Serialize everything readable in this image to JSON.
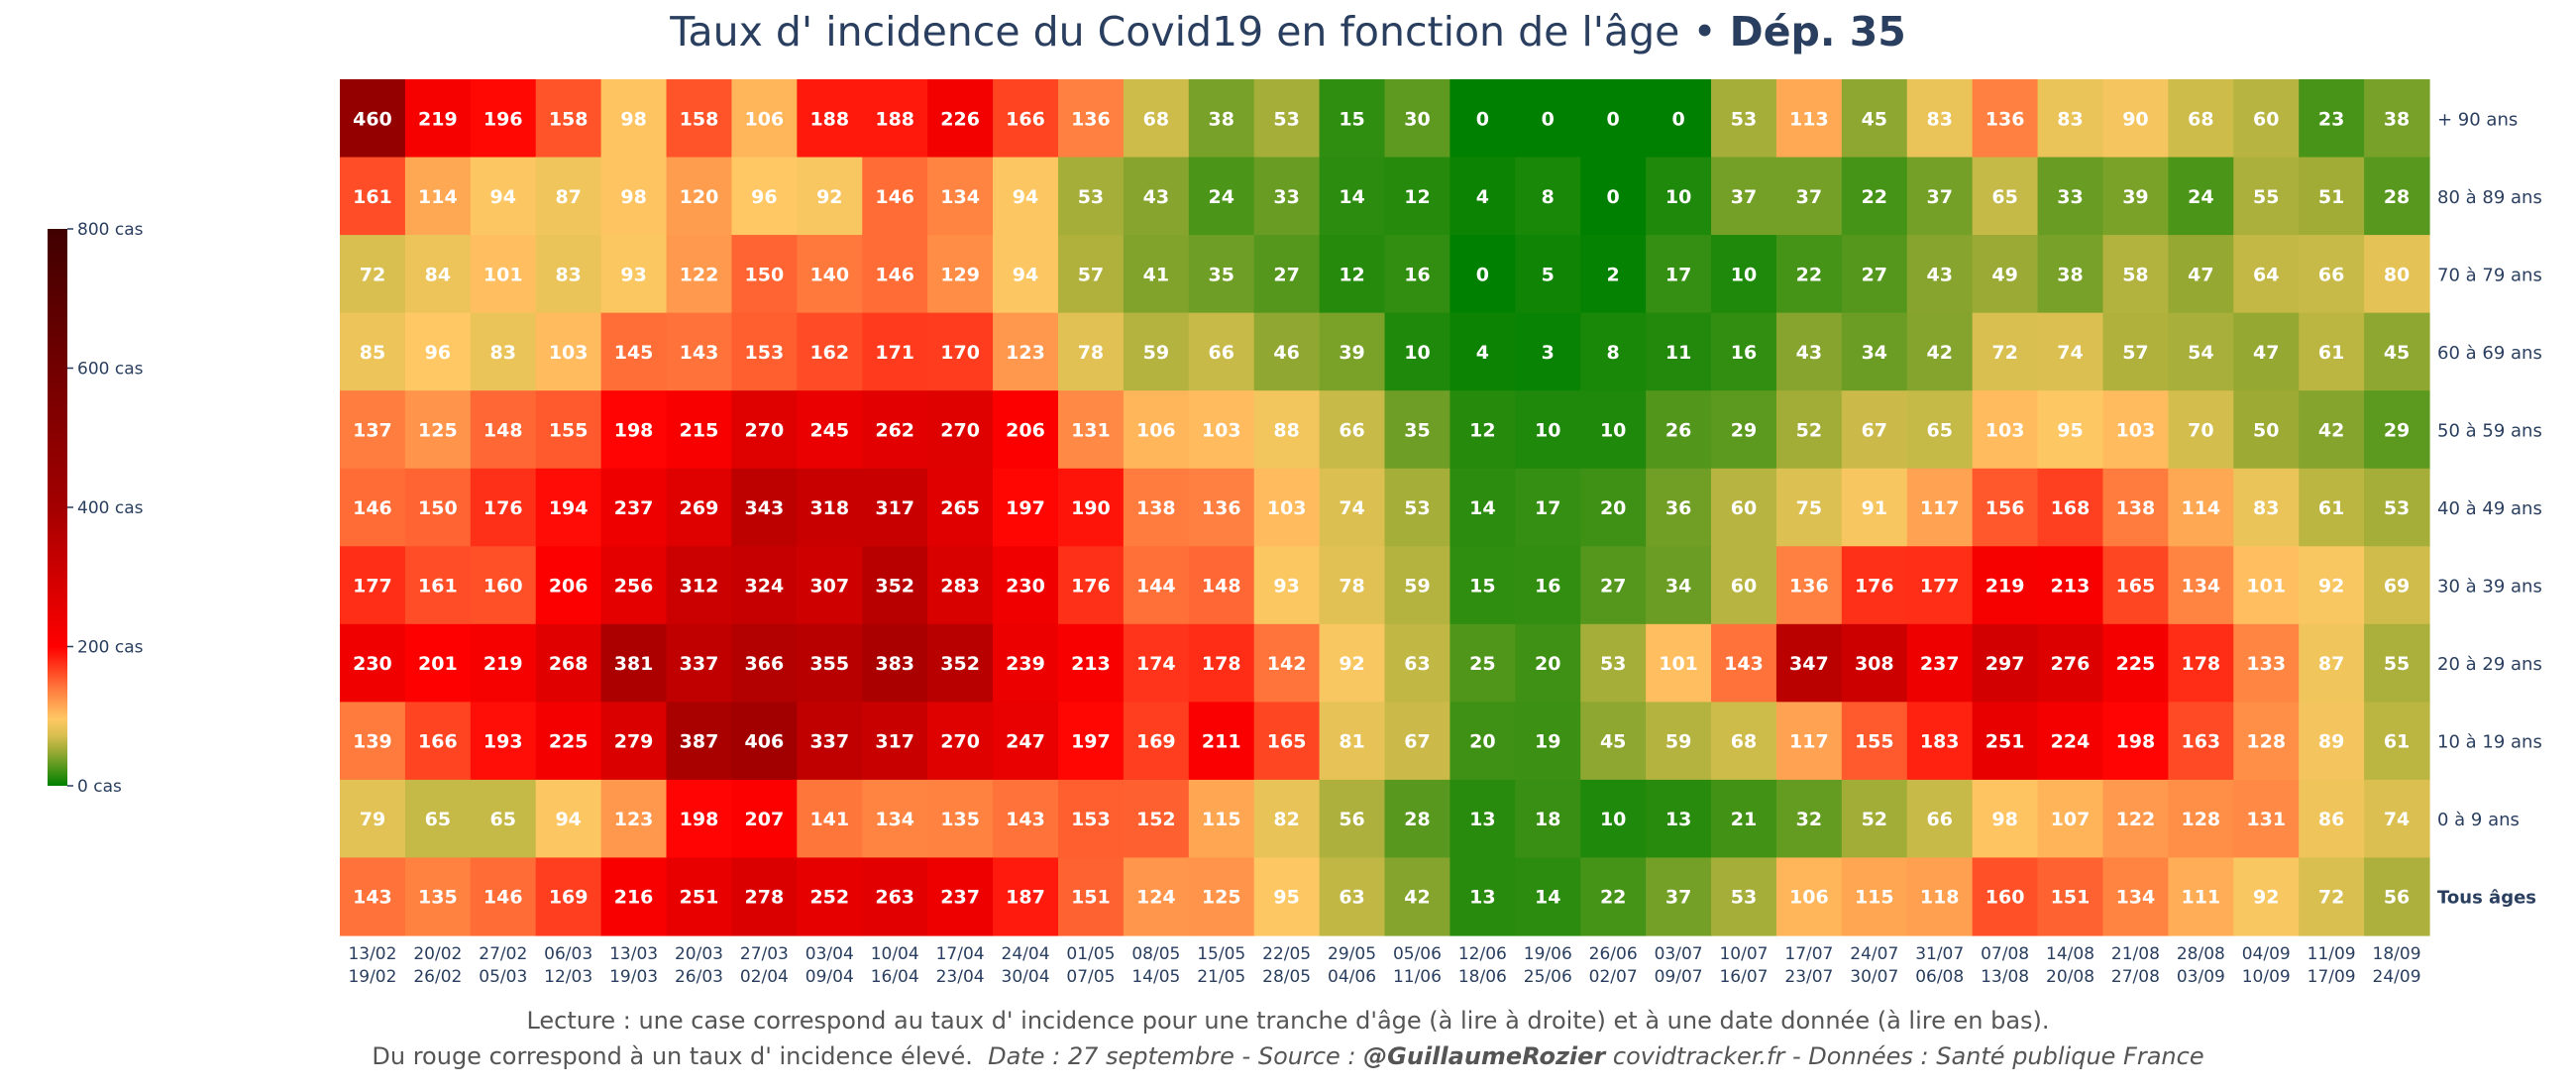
{
  "chart_data": {
    "type": "heatmap",
    "title": "Taux d' incidence du Covid19 en fonction de l'âge",
    "title_separator": "•",
    "title_dep": "Dép. 35",
    "rows": [
      "+ 90 ans",
      "80 à 89 ans",
      "70 à 79 ans",
      "60 à 69 ans",
      "50 à 59 ans",
      "40 à 49 ans",
      "30 à 39 ans",
      "20 à 29 ans",
      "10 à 19 ans",
      "0 à 9 ans",
      "Tous âges"
    ],
    "x_start": [
      "13/02",
      "20/02",
      "27/02",
      "06/03",
      "13/03",
      "20/03",
      "27/03",
      "03/04",
      "10/04",
      "17/04",
      "24/04",
      "01/05",
      "08/05",
      "15/05",
      "22/05",
      "29/05",
      "05/06",
      "12/06",
      "19/06",
      "26/06",
      "03/07",
      "10/07",
      "17/07",
      "24/07",
      "31/07",
      "07/08",
      "14/08",
      "21/08",
      "28/08",
      "04/09",
      "11/09",
      "18/09"
    ],
    "x_end": [
      "19/02",
      "26/02",
      "05/03",
      "12/03",
      "19/03",
      "26/03",
      "02/04",
      "09/04",
      "16/04",
      "23/04",
      "30/04",
      "07/05",
      "14/05",
      "21/05",
      "28/05",
      "04/06",
      "11/06",
      "18/06",
      "25/06",
      "02/07",
      "09/07",
      "16/07",
      "23/07",
      "30/07",
      "06/08",
      "13/08",
      "20/08",
      "27/08",
      "03/09",
      "10/09",
      "17/09",
      "24/09"
    ],
    "values": [
      [
        460,
        219,
        196,
        158,
        98,
        158,
        106,
        188,
        188,
        226,
        166,
        136,
        68,
        38,
        53,
        15,
        30,
        0,
        0,
        0,
        0,
        53,
        113,
        45,
        83,
        136,
        83,
        90,
        68,
        60,
        23,
        38
      ],
      [
        161,
        114,
        94,
        87,
        98,
        120,
        96,
        92,
        146,
        134,
        94,
        53,
        43,
        24,
        33,
        14,
        12,
        4,
        8,
        0,
        10,
        37,
        37,
        22,
        37,
        65,
        33,
        39,
        24,
        55,
        51,
        28
      ],
      [
        72,
        84,
        101,
        83,
        93,
        122,
        150,
        140,
        146,
        129,
        94,
        57,
        41,
        35,
        27,
        12,
        16,
        0,
        5,
        2,
        17,
        10,
        22,
        27,
        43,
        49,
        38,
        58,
        47,
        64,
        66,
        80
      ],
      [
        85,
        96,
        83,
        103,
        145,
        143,
        153,
        162,
        171,
        170,
        123,
        78,
        59,
        66,
        46,
        39,
        10,
        4,
        3,
        8,
        11,
        16,
        43,
        34,
        42,
        72,
        74,
        57,
        54,
        47,
        61,
        45
      ],
      [
        137,
        125,
        148,
        155,
        198,
        215,
        270,
        245,
        262,
        270,
        206,
        131,
        106,
        103,
        88,
        66,
        35,
        12,
        10,
        10,
        26,
        29,
        52,
        67,
        65,
        103,
        95,
        103,
        70,
        50,
        42,
        29
      ],
      [
        146,
        150,
        176,
        194,
        237,
        269,
        343,
        318,
        317,
        265,
        197,
        190,
        138,
        136,
        103,
        74,
        53,
        14,
        17,
        20,
        36,
        60,
        75,
        91,
        117,
        156,
        168,
        138,
        114,
        83,
        61,
        53
      ],
      [
        177,
        161,
        160,
        206,
        256,
        312,
        324,
        307,
        352,
        283,
        230,
        176,
        144,
        148,
        93,
        78,
        59,
        15,
        16,
        27,
        34,
        60,
        136,
        176,
        177,
        219,
        213,
        165,
        134,
        101,
        92,
        69
      ],
      [
        230,
        201,
        219,
        268,
        381,
        337,
        366,
        355,
        383,
        352,
        239,
        213,
        174,
        178,
        142,
        92,
        63,
        25,
        20,
        53,
        101,
        143,
        347,
        308,
        237,
        297,
        276,
        225,
        178,
        133,
        87,
        55
      ],
      [
        139,
        166,
        193,
        225,
        279,
        387,
        406,
        337,
        317,
        270,
        247,
        197,
        169,
        211,
        165,
        81,
        67,
        20,
        19,
        45,
        59,
        68,
        117,
        155,
        183,
        251,
        224,
        198,
        163,
        128,
        89,
        61
      ],
      [
        79,
        65,
        65,
        94,
        123,
        198,
        207,
        141,
        134,
        135,
        143,
        153,
        152,
        115,
        82,
        56,
        28,
        13,
        18,
        10,
        13,
        21,
        32,
        52,
        66,
        98,
        107,
        122,
        128,
        131,
        86,
        74
      ],
      [
        143,
        135,
        146,
        169,
        216,
        251,
        278,
        252,
        263,
        237,
        187,
        151,
        124,
        125,
        95,
        63,
        42,
        13,
        14,
        22,
        37,
        53,
        106,
        115,
        118,
        160,
        151,
        134,
        111,
        92,
        72,
        56
      ]
    ],
    "zmin": 0,
    "zmax": 800,
    "colorbar": {
      "ticks": [
        0,
        200,
        400,
        600,
        800
      ],
      "labels": [
        "0 cas",
        "200 cas",
        "400 cas",
        "600 cas",
        "800 cas"
      ]
    },
    "colorscale": [
      [
        0,
        "#008000"
      ],
      [
        0.0625,
        "#9dab35"
      ],
      [
        0.09,
        "#d8bf4f"
      ],
      [
        0.12,
        "#ffc864"
      ],
      [
        0.17,
        "#ff8040"
      ],
      [
        0.25,
        "#ff0000"
      ],
      [
        0.5,
        "#a30000"
      ],
      [
        1.0,
        "#400000"
      ]
    ]
  },
  "footer": {
    "line1": "Lecture : une case correspond au taux d' incidence pour une tranche d'âge (à lire à droite) et à une date donnée (à lire en bas).",
    "line2_a": "Du rouge correspond à un taux d' incidence élevé.",
    "line2_b": "Date : 27 septembre - Source :",
    "line2_author": "@GuillaumeRozier",
    "line2_c": "covidtracker.fr - Données : Santé publique France"
  }
}
